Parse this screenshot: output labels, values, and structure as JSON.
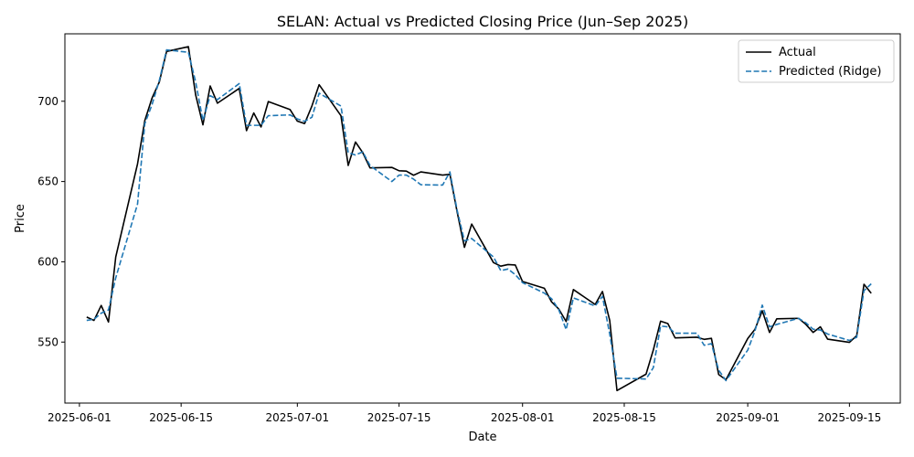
{
  "chart_data": {
    "type": "line",
    "title": "SELAN: Actual vs Predicted Closing Price (Jun–Sep 2025)",
    "xlabel": "Date",
    "ylabel": "Price",
    "x_ticks": [
      "2025-06-01",
      "2025-06-15",
      "2025-07-01",
      "2025-07-15",
      "2025-08-01",
      "2025-08-15",
      "2025-09-01",
      "2025-09-15"
    ],
    "y_ticks": [
      550,
      600,
      650,
      700
    ],
    "xlim": [
      "2025-05-30",
      "2025-09-22"
    ],
    "ylim": [
      512,
      742
    ],
    "grid": false,
    "legend_position": "upper right",
    "series": [
      {
        "name": "Actual",
        "color": "#000000",
        "style": "solid",
        "points": [
          [
            "2025-06-02",
            565.6
          ],
          [
            "2025-06-03",
            563.5
          ],
          [
            "2025-06-04",
            572.8
          ],
          [
            "2025-06-05",
            562.5
          ],
          [
            "2025-06-06",
            603.0
          ],
          [
            "2025-06-09",
            661.0
          ],
          [
            "2025-06-10",
            688.0
          ],
          [
            "2025-06-11",
            702.0
          ],
          [
            "2025-06-12",
            712.0
          ],
          [
            "2025-06-13",
            731.0
          ],
          [
            "2025-06-16",
            734.0
          ],
          [
            "2025-06-17",
            704.0
          ],
          [
            "2025-06-18",
            685.3
          ],
          [
            "2025-06-19",
            709.5
          ],
          [
            "2025-06-20",
            698.8
          ],
          [
            "2025-06-23",
            708.0
          ],
          [
            "2025-06-24",
            681.7
          ],
          [
            "2025-06-25",
            692.7
          ],
          [
            "2025-06-26",
            684.0
          ],
          [
            "2025-06-27",
            699.8
          ],
          [
            "2025-06-30",
            694.8
          ],
          [
            "2025-07-01",
            687.6
          ],
          [
            "2025-07-02",
            686.1
          ],
          [
            "2025-07-03",
            697.0
          ],
          [
            "2025-07-04",
            710.3
          ],
          [
            "2025-07-07",
            691.0
          ],
          [
            "2025-07-08",
            660.0
          ],
          [
            "2025-07-09",
            674.6
          ],
          [
            "2025-07-10",
            668.0
          ],
          [
            "2025-07-11",
            658.5
          ],
          [
            "2025-07-14",
            658.8
          ],
          [
            "2025-07-15",
            656.7
          ],
          [
            "2025-07-16",
            656.5
          ],
          [
            "2025-07-17",
            653.9
          ],
          [
            "2025-07-18",
            656.0
          ],
          [
            "2025-07-21",
            654.0
          ],
          [
            "2025-07-22",
            654.5
          ],
          [
            "2025-07-23",
            631.0
          ],
          [
            "2025-07-24",
            609.0
          ],
          [
            "2025-07-25",
            623.5
          ],
          [
            "2025-07-28",
            599.5
          ],
          [
            "2025-07-29",
            597.3
          ],
          [
            "2025-07-30",
            598.3
          ],
          [
            "2025-07-31",
            598.0
          ],
          [
            "2025-08-01",
            587.7
          ],
          [
            "2025-08-04",
            583.5
          ],
          [
            "2025-08-05",
            575.0
          ],
          [
            "2025-08-06",
            570.5
          ],
          [
            "2025-08-07",
            562.8
          ],
          [
            "2025-08-08",
            582.7
          ],
          [
            "2025-08-11",
            573.4
          ],
          [
            "2025-08-12",
            581.5
          ],
          [
            "2025-08-13",
            563.5
          ],
          [
            "2025-08-14",
            519.8
          ],
          [
            "2025-08-18",
            530.0
          ],
          [
            "2025-08-19",
            545.0
          ],
          [
            "2025-08-20",
            563.0
          ],
          [
            "2025-08-21",
            561.5
          ],
          [
            "2025-08-22",
            552.6
          ],
          [
            "2025-08-25",
            553.0
          ],
          [
            "2025-08-26",
            551.7
          ],
          [
            "2025-08-27",
            552.3
          ],
          [
            "2025-08-28",
            529.8
          ],
          [
            "2025-08-29",
            526.5
          ],
          [
            "2025-09-01",
            552.2
          ],
          [
            "2025-09-02",
            558.0
          ],
          [
            "2025-09-03",
            569.5
          ],
          [
            "2025-09-04",
            556.0
          ],
          [
            "2025-09-05",
            564.5
          ],
          [
            "2025-09-08",
            564.8
          ],
          [
            "2025-09-09",
            561.0
          ],
          [
            "2025-09-10",
            556.0
          ],
          [
            "2025-09-11",
            559.5
          ],
          [
            "2025-09-12",
            551.8
          ],
          [
            "2025-09-15",
            549.8
          ],
          [
            "2025-09-16",
            554.0
          ],
          [
            "2025-09-17",
            586.0
          ],
          [
            "2025-09-18",
            580.4
          ]
        ]
      },
      {
        "name": "Predicted (Ridge)",
        "color": "#1f77b4",
        "style": "dashed",
        "points": [
          [
            "2025-06-02",
            563.5
          ],
          [
            "2025-06-03",
            564.2
          ],
          [
            "2025-06-04",
            568.0
          ],
          [
            "2025-06-05",
            570.0
          ],
          [
            "2025-06-06",
            590.0
          ],
          [
            "2025-06-09",
            636.0
          ],
          [
            "2025-06-10",
            686.0
          ],
          [
            "2025-06-11",
            698.0
          ],
          [
            "2025-06-12",
            713.0
          ],
          [
            "2025-06-13",
            732.0
          ],
          [
            "2025-06-16",
            730.5
          ],
          [
            "2025-06-17",
            712.0
          ],
          [
            "2025-06-18",
            688.0
          ],
          [
            "2025-06-19",
            703.5
          ],
          [
            "2025-06-20",
            701.0
          ],
          [
            "2025-06-23",
            711.0
          ],
          [
            "2025-06-24",
            685.0
          ],
          [
            "2025-06-25",
            685.0
          ],
          [
            "2025-06-26",
            685.0
          ],
          [
            "2025-06-27",
            691.0
          ],
          [
            "2025-06-30",
            691.5
          ],
          [
            "2025-07-01",
            689.0
          ],
          [
            "2025-07-02",
            687.5
          ],
          [
            "2025-07-03",
            690.0
          ],
          [
            "2025-07-04",
            705.0
          ],
          [
            "2025-07-07",
            697.0
          ],
          [
            "2025-07-08",
            668.0
          ],
          [
            "2025-07-09",
            666.5
          ],
          [
            "2025-07-10",
            668.5
          ],
          [
            "2025-07-11",
            660.0
          ],
          [
            "2025-07-14",
            650.0
          ],
          [
            "2025-07-15",
            654.0
          ],
          [
            "2025-07-16",
            654.0
          ],
          [
            "2025-07-17",
            651.5
          ],
          [
            "2025-07-18",
            648.0
          ],
          [
            "2025-07-21",
            647.8
          ],
          [
            "2025-07-22",
            656.0
          ],
          [
            "2025-07-23",
            632.0
          ],
          [
            "2025-07-24",
            613.0
          ],
          [
            "2025-07-25",
            614.5
          ],
          [
            "2025-07-28",
            603.0
          ],
          [
            "2025-07-29",
            594.5
          ],
          [
            "2025-07-30",
            595.5
          ],
          [
            "2025-07-31",
            592.0
          ],
          [
            "2025-08-01",
            587.0
          ],
          [
            "2025-08-04",
            580.5
          ],
          [
            "2025-08-05",
            577.0
          ],
          [
            "2025-08-06",
            570.0
          ],
          [
            "2025-08-07",
            557.8
          ],
          [
            "2025-08-08",
            577.5
          ],
          [
            "2025-08-11",
            572.5
          ],
          [
            "2025-08-12",
            578.5
          ],
          [
            "2025-08-13",
            555.0
          ],
          [
            "2025-08-14",
            527.5
          ],
          [
            "2025-08-18",
            527.0
          ],
          [
            "2025-08-19",
            534.0
          ],
          [
            "2025-08-20",
            560.0
          ],
          [
            "2025-08-21",
            559.5
          ],
          [
            "2025-08-22",
            555.5
          ],
          [
            "2025-08-25",
            555.5
          ],
          [
            "2025-08-26",
            548.0
          ],
          [
            "2025-08-27",
            549.0
          ],
          [
            "2025-08-28",
            532.5
          ],
          [
            "2025-08-29",
            526.0
          ],
          [
            "2025-09-01",
            545.0
          ],
          [
            "2025-09-02",
            557.0
          ],
          [
            "2025-09-03",
            573.0
          ],
          [
            "2025-09-04",
            559.5
          ],
          [
            "2025-09-05",
            561.0
          ],
          [
            "2025-09-08",
            564.8
          ],
          [
            "2025-09-09",
            562.0
          ],
          [
            "2025-09-10",
            558.0
          ],
          [
            "2025-09-11",
            557.5
          ],
          [
            "2025-09-12",
            555.0
          ],
          [
            "2025-09-15",
            551.0
          ],
          [
            "2025-09-16",
            553.0
          ],
          [
            "2025-09-17",
            582.0
          ],
          [
            "2025-09-18",
            586.3
          ]
        ]
      }
    ]
  }
}
